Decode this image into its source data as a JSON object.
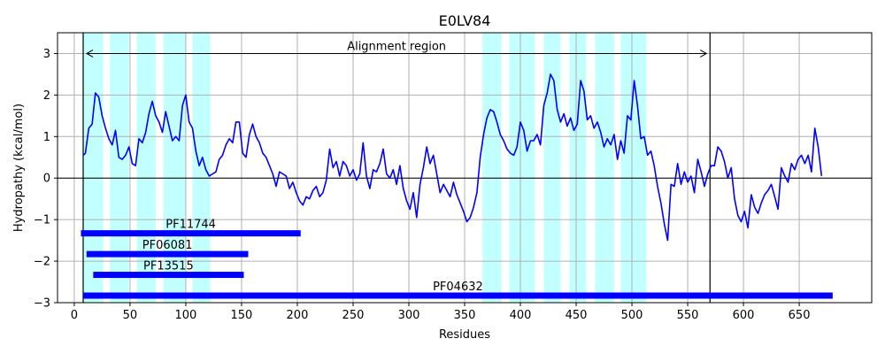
{
  "chart_data": {
    "type": "line",
    "title": "E0LV84",
    "xlabel": "Residues",
    "ylabel": "Hydropathy (kcal/mol)",
    "xlim": [
      -15,
      715
    ],
    "ylim": [
      -3,
      3.5
    ],
    "x_ticks": [
      0,
      50,
      100,
      150,
      200,
      250,
      300,
      350,
      400,
      450,
      500,
      550,
      600,
      650
    ],
    "y_ticks": [
      -3,
      -2,
      -1,
      0,
      1,
      2,
      3
    ],
    "grid": true,
    "colors": {
      "line": "#0000ff",
      "highlight": "#c2ffff",
      "domain": "#0000ff",
      "grid": "#b0b0b0",
      "axis": "#000000"
    },
    "highlight_regions": [
      [
        8,
        26
      ],
      [
        32,
        49
      ],
      [
        56,
        73
      ],
      [
        80,
        100
      ],
      [
        106,
        122
      ],
      [
        366,
        383
      ],
      [
        390,
        413
      ],
      [
        421,
        436
      ],
      [
        444,
        459
      ],
      [
        467,
        484
      ],
      [
        490,
        513
      ]
    ],
    "alignment_region": {
      "label": "Alignment region",
      "start": 8,
      "end": 570,
      "y": 3
    },
    "domains": [
      {
        "name": "PF11744",
        "start": 6,
        "end": 203,
        "y": -1.33
      },
      {
        "name": "PF06081",
        "start": 11,
        "end": 156,
        "y": -1.83
      },
      {
        "name": "PF13515",
        "start": 17,
        "end": 152,
        "y": -2.33
      },
      {
        "name": "PF04632",
        "start": 8,
        "end": 680,
        "y": -2.83
      }
    ],
    "series": [
      {
        "x": [
          8,
          10,
          13,
          16,
          19,
          22,
          25,
          28,
          31,
          34,
          37,
          40,
          43,
          46,
          49,
          52,
          55,
          58,
          61,
          64,
          67,
          70,
          73,
          76,
          79,
          82,
          85,
          88,
          91,
          94,
          97,
          100,
          103,
          106,
          109,
          112,
          115,
          118,
          121,
          124,
          127,
          130,
          133,
          136,
          139,
          142,
          145,
          148,
          151,
          154,
          157,
          160,
          163,
          166,
          169,
          172,
          175,
          178,
          181,
          184,
          187,
          190,
          193,
          196,
          199,
          202,
          205,
          208,
          211,
          214,
          217,
          220,
          223,
          226,
          229,
          232,
          235,
          238,
          241,
          244,
          247,
          250,
          253,
          256,
          259,
          262,
          265,
          268,
          271,
          274,
          277,
          280,
          283,
          286,
          289,
          292,
          295,
          298,
          301,
          304,
          307,
          310,
          313,
          316,
          319,
          322,
          325,
          328,
          331,
          334,
          337,
          340,
          343,
          346,
          349,
          352,
          355,
          358,
          361,
          364,
          367,
          370,
          373,
          376,
          379,
          382,
          385,
          388,
          391,
          394,
          397,
          400,
          403,
          406,
          409,
          412,
          415,
          418,
          421,
          424,
          427,
          430,
          433,
          436,
          439,
          442,
          445,
          448,
          451,
          454,
          457,
          460,
          463,
          466,
          469,
          472,
          475,
          478,
          481,
          484,
          487,
          490,
          493,
          496,
          499,
          502,
          505,
          508,
          511,
          514,
          517,
          520,
          523,
          526,
          529,
          532,
          535,
          538,
          541,
          544,
          547,
          550,
          553,
          556,
          559,
          562,
          565,
          568,
          571,
          574,
          577,
          580,
          583,
          586,
          589,
          592,
          595,
          598,
          601,
          604,
          607,
          610,
          613,
          616,
          619,
          622,
          625,
          628,
          631,
          634,
          637,
          640,
          643,
          646,
          649,
          652,
          655,
          658,
          661,
          664,
          667,
          670
        ],
        "y": [
          0.55,
          0.6,
          1.2,
          1.3,
          2.05,
          1.95,
          1.5,
          1.2,
          0.95,
          0.8,
          1.15,
          0.5,
          0.45,
          0.55,
          0.75,
          0.35,
          0.3,
          0.95,
          0.85,
          1.1,
          1.55,
          1.85,
          1.5,
          1.35,
          1.1,
          1.6,
          1.25,
          0.9,
          1.0,
          0.9,
          1.75,
          2.0,
          1.35,
          1.2,
          0.65,
          0.3,
          0.5,
          0.2,
          0.05,
          0.1,
          0.15,
          0.45,
          0.55,
          0.8,
          0.95,
          0.85,
          1.35,
          1.35,
          0.6,
          0.5,
          1.05,
          1.3,
          1.0,
          0.85,
          0.6,
          0.5,
          0.3,
          0.1,
          -0.2,
          0.15,
          0.1,
          0.05,
          -0.25,
          -0.1,
          -0.35,
          -0.55,
          -0.65,
          -0.45,
          -0.5,
          -0.3,
          -0.2,
          -0.45,
          -0.35,
          -0.05,
          0.7,
          0.25,
          0.4,
          0.05,
          0.4,
          0.3,
          0.05,
          0.2,
          -0.05,
          0.1,
          0.85,
          0.05,
          -0.25,
          0.2,
          0.15,
          0.35,
          0.7,
          0.1,
          0.0,
          0.2,
          -0.15,
          0.3,
          -0.25,
          -0.55,
          -0.75,
          -0.35,
          -0.95,
          -0.15,
          0.25,
          0.75,
          0.35,
          0.55,
          0.1,
          -0.35,
          -0.15,
          -0.3,
          -0.45,
          -0.1,
          -0.4,
          -0.6,
          -0.8,
          -1.05,
          -0.95,
          -0.7,
          -0.35,
          0.5,
          1.05,
          1.45,
          1.65,
          1.6,
          1.35,
          1.05,
          0.9,
          0.7,
          0.6,
          0.55,
          0.75,
          1.35,
          1.15,
          0.65,
          0.9,
          0.9,
          1.05,
          0.8,
          1.75,
          2.05,
          2.5,
          2.35,
          1.65,
          1.35,
          1.55,
          1.25,
          1.45,
          1.15,
          1.3,
          2.35,
          2.1,
          1.4,
          1.5,
          1.2,
          1.35,
          1.1,
          0.75,
          0.95,
          0.8,
          1.05,
          0.45,
          0.9,
          0.6,
          1.5,
          1.4,
          2.35,
          1.75,
          0.95,
          1.0,
          0.55,
          0.65,
          0.3,
          -0.2,
          -0.6,
          -1.1,
          -1.5,
          -0.15,
          -0.2,
          0.35,
          -0.15,
          0.15,
          -0.1,
          0.05,
          -0.35,
          0.45,
          0.15,
          -0.2,
          0.1,
          0.3,
          0.3,
          0.75,
          0.65,
          0.4,
          0.0,
          0.25,
          -0.5,
          -0.9,
          -1.05,
          -0.8,
          -1.2,
          -0.4,
          -0.7,
          -0.85,
          -0.6,
          -0.4,
          -0.3,
          -0.15,
          -0.45,
          -0.75,
          0.25,
          0.05,
          -0.1,
          0.35,
          0.2,
          0.45,
          0.55,
          0.35,
          0.55,
          0.15,
          1.2,
          0.75,
          0.05
        ]
      }
    ]
  }
}
